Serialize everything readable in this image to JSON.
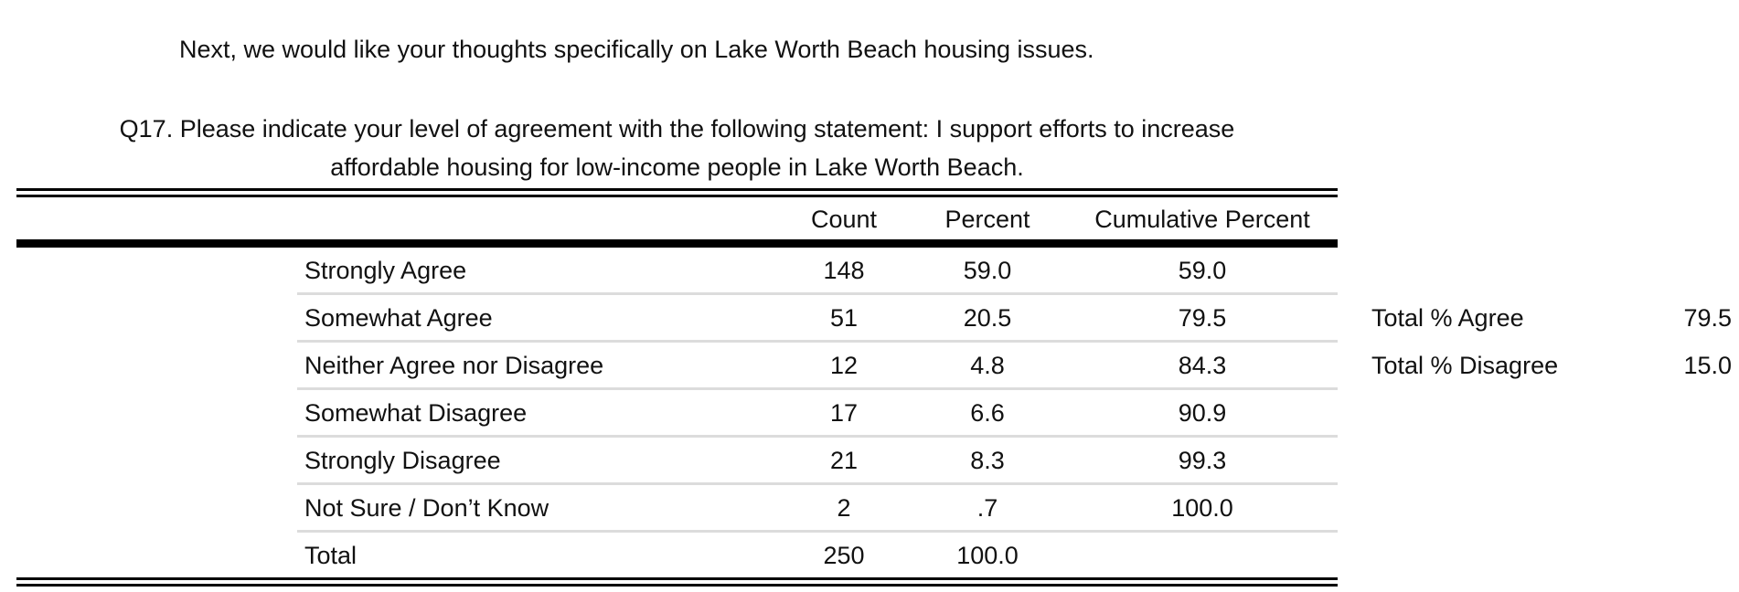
{
  "intro_text": "Next, we would like your thoughts specifically on Lake Worth Beach housing issues.",
  "question": {
    "line1": "Q17. Please indicate your level of agreement with the following statement: I support efforts to increase",
    "line2": "affordable housing for low-income people in Lake Worth Beach."
  },
  "table": {
    "headers": [
      "Count",
      "Percent",
      "Cumulative Percent"
    ],
    "rows": [
      {
        "label": "Strongly Agree",
        "count": "148",
        "percent": "59.0",
        "cumulative": "59.0"
      },
      {
        "label": "Somewhat Agree",
        "count": "51",
        "percent": "20.5",
        "cumulative": "79.5"
      },
      {
        "label": "Neither Agree nor Disagree",
        "count": "12",
        "percent": "4.8",
        "cumulative": "84.3"
      },
      {
        "label": "Somewhat Disagree",
        "count": "17",
        "percent": "6.6",
        "cumulative": "90.9"
      },
      {
        "label": "Strongly Disagree",
        "count": "21",
        "percent": "8.3",
        "cumulative": "99.3"
      },
      {
        "label": "Not Sure / Don’t Know",
        "count": "2",
        "percent": ".7",
        "cumulative": "100.0"
      },
      {
        "label": "Total",
        "count": "250",
        "percent": "100.0",
        "cumulative": ""
      }
    ]
  },
  "summary": [
    {
      "label": "Total % Agree",
      "value": "79.5"
    },
    {
      "label": "Total % Disagree",
      "value": "15.0"
    }
  ]
}
